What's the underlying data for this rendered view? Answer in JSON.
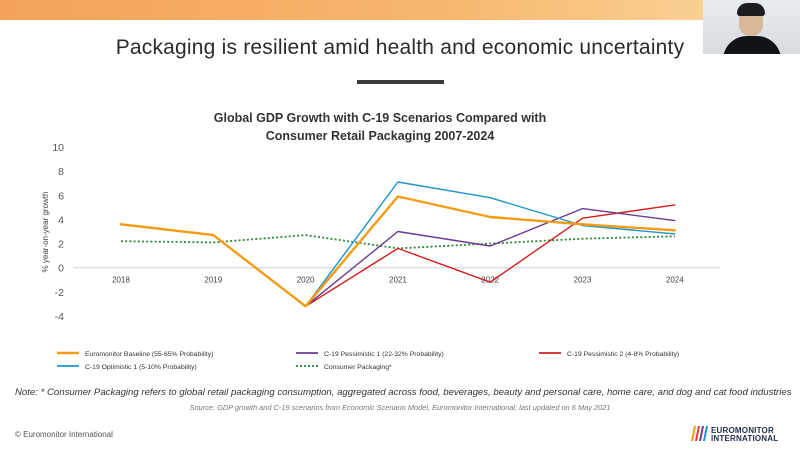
{
  "slide": {
    "title": "Packaging is resilient amid health and economic uncertainty",
    "note": "Note: * Consumer Packaging refers to global retail packaging consumption, aggregated across food, beverages, beauty and personal care, home care, and dog and cat food industries",
    "source": "Source: GDP growth and C-19 scenarios from Economic Scenario Model, Euromonitor International; last updated on 6 May 2021",
    "copyright": "© Euromonitor International",
    "logo": {
      "line1": "EUROMONITOR",
      "line2": "INTERNATIONAL"
    }
  },
  "colors": {
    "baseline": "#f59b14",
    "pessimistic1": "#6b3a8f",
    "pessimistic2": "#d11f1f",
    "optimistic1": "#1e94c9",
    "packaging": "#2e8b2e"
  },
  "chart_data": {
    "type": "line",
    "title_line1": "Global GDP Growth with C-19 Scenarios Compared with",
    "title_line2": "Consumer Retail Packaging 2007-2024",
    "ylabel": "% year-on-year growth",
    "xlabel": "",
    "x": [
      "2018",
      "2019",
      "2020",
      "2021",
      "2022",
      "2023",
      "2024"
    ],
    "ylim": [
      -4,
      10
    ],
    "yticks": [
      -4,
      -2,
      0,
      2,
      4,
      6,
      8,
      10
    ],
    "grid": false,
    "legend_position": "bottom",
    "series": [
      {
        "key": "baseline",
        "name": "Euromonitor Baseline  (55-65% Probability)",
        "values": [
          3.6,
          2.7,
          -3.2,
          5.9,
          4.2,
          3.6,
          3.1
        ],
        "dash": "solid"
      },
      {
        "key": "pessimistic1",
        "name": "C-19 Pessimistic 1 (22-32% Probability)",
        "values": [
          null,
          null,
          -3.2,
          3.0,
          1.8,
          4.9,
          3.9
        ],
        "dash": "solid"
      },
      {
        "key": "pessimistic2",
        "name": "C-19 Pessimistic 2  (4-8% Probability)",
        "values": [
          null,
          null,
          -3.2,
          1.6,
          -1.2,
          4.1,
          5.2
        ],
        "dash": "solid"
      },
      {
        "key": "optimistic1",
        "name": "C-19 Optimistic 1  (5-10% Probability)",
        "values": [
          null,
          null,
          -3.2,
          7.1,
          5.8,
          3.5,
          2.8
        ],
        "dash": "solid"
      },
      {
        "key": "packaging",
        "name": "Consumer Packaging*",
        "values": [
          2.2,
          2.1,
          2.7,
          1.6,
          2.0,
          2.4,
          2.6
        ],
        "dash": "dotted"
      }
    ]
  }
}
